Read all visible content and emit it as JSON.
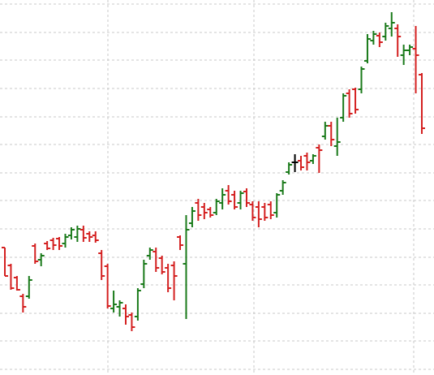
{
  "chart_data": {
    "type": "ohlc",
    "ylim": [
      0,
      462
    ],
    "yticks": [
      7,
      42,
      76,
      111,
      145,
      180,
      215,
      249,
      284,
      318,
      353,
      388,
      422,
      457
    ],
    "grid": true,
    "up_color": "#1a7a1a",
    "down_color": "#d42020",
    "flat_color": "#000000",
    "open": [
      157,
      135,
      120,
      97,
      97,
      159,
      142,
      162,
      166,
      168,
      162,
      172,
      170,
      179,
      174,
      172,
      150,
      134,
      82,
      84,
      82,
      74,
      72,
      112,
      147,
      152,
      144,
      132,
      135,
      170,
      137,
      187,
      212,
      207,
      204,
      200,
      212,
      227,
      222,
      212,
      226,
      210,
      207,
      207,
      210,
      200,
      227,
      250,
      262,
      264,
      270,
      264,
      280,
      294,
      307,
      282,
      317,
      347,
      352,
      352,
      387,
      412,
      418,
      417,
      427,
      427,
      394,
      400,
      402,
      370
    ],
    "high": [
      157,
      137,
      122,
      100,
      122,
      162,
      150,
      165,
      169,
      170,
      174,
      182,
      184,
      184,
      177,
      177,
      154,
      137,
      104,
      92,
      87,
      77,
      107,
      142,
      157,
      157,
      147,
      137,
      140,
      172,
      197,
      207,
      217,
      212,
      207,
      217,
      230,
      234,
      227,
      227,
      230,
      214,
      214,
      212,
      214,
      224,
      240,
      262,
      272,
      270,
      274,
      272,
      284,
      312,
      312,
      317,
      347,
      352,
      354,
      380,
      420,
      424,
      422,
      434,
      447,
      432,
      407,
      407,
      430,
      372
    ],
    "low": [
      122,
      105,
      104,
      77,
      94,
      137,
      134,
      154,
      154,
      154,
      157,
      167,
      164,
      164,
      164,
      163,
      117,
      82,
      77,
      72,
      62,
      54,
      67,
      107,
      142,
      127,
      124,
      102,
      92,
      154,
      69,
      182,
      190,
      192,
      194,
      197,
      204,
      210,
      204,
      204,
      207,
      190,
      182,
      190,
      192,
      194,
      222,
      247,
      250,
      252,
      252,
      260,
      249,
      290,
      282,
      270,
      312,
      317,
      322,
      347,
      384,
      407,
      404,
      412,
      417,
      392,
      382,
      394,
      347,
      297
    ],
    "close": [
      122,
      107,
      105,
      84,
      117,
      140,
      147,
      156,
      160,
      159,
      170,
      179,
      180,
      169,
      170,
      166,
      122,
      85,
      87,
      89,
      72,
      59,
      104,
      137,
      154,
      132,
      127,
      107,
      122,
      160,
      179,
      202,
      197,
      200,
      197,
      214,
      222,
      214,
      207,
      224,
      212,
      194,
      192,
      194,
      197,
      222,
      237,
      259,
      262,
      256,
      262,
      270,
      277,
      307,
      290,
      287,
      344,
      322,
      327,
      377,
      414,
      420,
      410,
      430,
      434,
      417,
      400,
      404,
      394,
      304
    ]
  }
}
